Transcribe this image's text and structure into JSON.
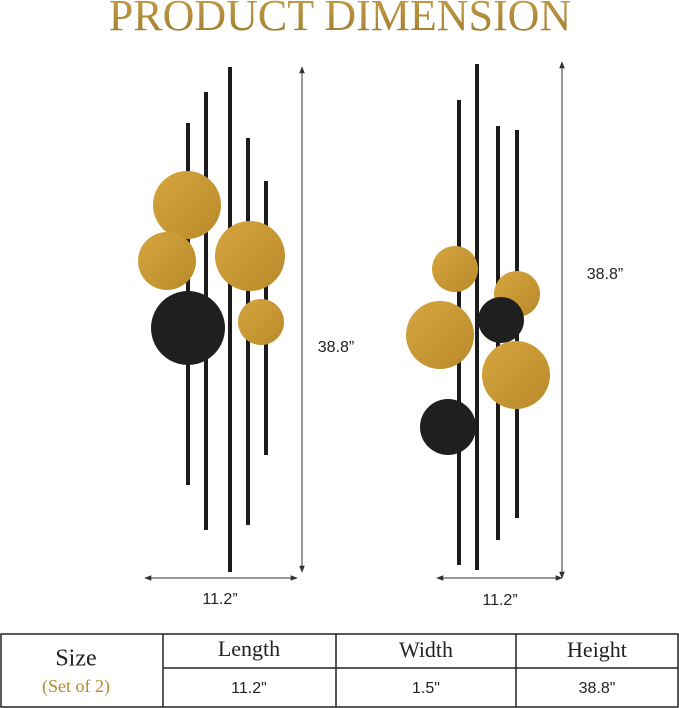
{
  "header": {
    "title": "PRODUCT DIMENSION"
  },
  "left_item": {
    "height": "38.8”",
    "width": "11.2”"
  },
  "right_item": {
    "height": "38.8”",
    "width": "11.2”"
  },
  "table": {
    "row_header": "Size",
    "row_header_note": "(Set of 2)",
    "columns": [
      "Length",
      "Width",
      "Height"
    ],
    "values": [
      "11.2\"",
      "1.5\"",
      "38.8\""
    ]
  }
}
